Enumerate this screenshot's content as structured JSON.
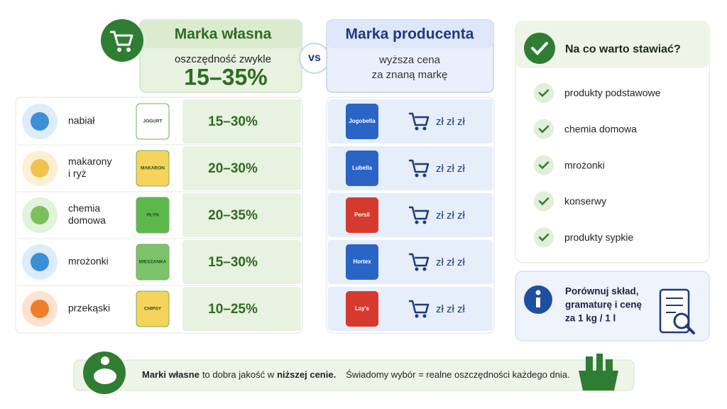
{
  "header": {
    "own_brand": {
      "title": "Marka własna",
      "subtitle": "oszczędność zwykle",
      "savings": "15–35%"
    },
    "vs": "vs",
    "producer_brand": {
      "title": "Marka producenta",
      "subtitle_lines": [
        "wyższa cena",
        "za znaną markę"
      ]
    }
  },
  "rows": [
    {
      "category_lines": [
        "nabiał"
      ],
      "own_product": "JOGURT",
      "savings": "15–30%",
      "producer_product": "Jogobella",
      "price": "zł zł zł"
    },
    {
      "category_lines": [
        "makarony",
        "i ryż"
      ],
      "own_product": "MAKARON",
      "savings": "20–30%",
      "producer_product": "Lubella",
      "price": "zł zł zł"
    },
    {
      "category_lines": [
        "chemia",
        "domowa"
      ],
      "own_product": "PŁYN",
      "savings": "20–35%",
      "producer_product": "Persil",
      "price": "zł zł zł"
    },
    {
      "category_lines": [
        "mrożonki"
      ],
      "own_product": "MIESZANKA",
      "savings": "15–30%",
      "producer_product": "Hortex",
      "price": "zł zł zł"
    },
    {
      "category_lines": [
        "przekąski"
      ],
      "own_product": "CHIPSY",
      "savings": "10–25%",
      "producer_product": "Lay's",
      "price": "zł zł zł"
    }
  ],
  "tips": {
    "title": "Na co warto stawiać?",
    "items": [
      "produkty podstawowe",
      "chemia domowa",
      "mrożonki",
      "konserwy",
      "produkty sypkie"
    ]
  },
  "info": {
    "lines": [
      "Porównuj skład,",
      "gramaturę i cenę",
      "za 1 kg / 1 l"
    ]
  },
  "footer": {
    "lead_bold": "Marki własne",
    "lead_text": "to dobra jakość w",
    "lead_bold_end": "niższej cenie.",
    "closing": "Świadomy wybór = realne oszczędności każdego dnia."
  }
}
